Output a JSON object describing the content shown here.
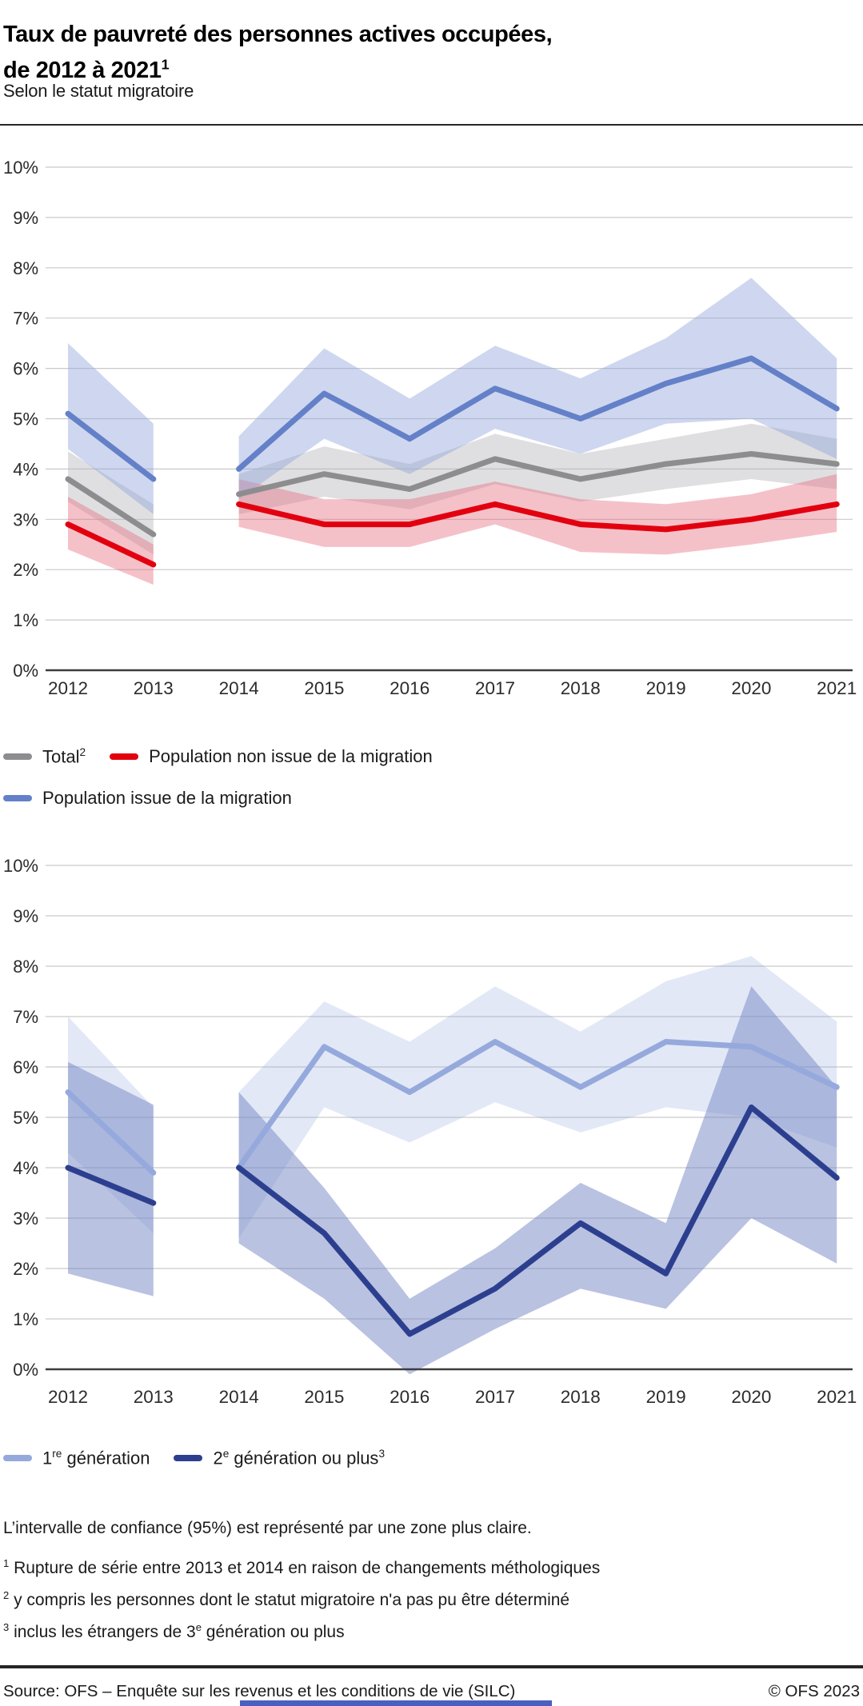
{
  "header": {
    "title_line1": "Taux de pauvreté des personnes actives occupées,",
    "title_line2_parts": [
      {
        "t": "de 2012 à 2021"
      },
      {
        "sup": "1"
      }
    ],
    "subtitle": "Selon le statut migratoire"
  },
  "confidence_note": "L’intervalle de confiance (95%) est représenté par une zone plus claire.",
  "footnotes": [
    [
      {
        "sup": "1"
      },
      {
        "t": " Rupture de série entre 2013 et 2014 en raison de changements méthologiques"
      }
    ],
    [
      {
        "sup": "2"
      },
      {
        "t": " y compris les personnes dont le statut migratoire n'a pas pu être déterminé"
      }
    ],
    [
      {
        "sup": "3"
      },
      {
        "t": " inclus les étrangers de 3"
      },
      {
        "sup": "e"
      },
      {
        "t": " génération ou plus"
      }
    ]
  ],
  "footer": {
    "source": "Source: OFS – Enquête sur les revenus et les conditions de vie (SILC)",
    "copyright": "© OFS 2023"
  },
  "colors": {
    "gridline": "#c9c9c9",
    "axis": "#3c3c3c",
    "tick_text": "#2b2b2b",
    "rule": "#262626",
    "bottom_bar": "#4a5fc1"
  },
  "chart_data": [
    {
      "type": "line",
      "title": "Taux de pauvreté selon le statut migratoire",
      "categories": [
        "2012",
        "2013",
        "2014",
        "2015",
        "2016",
        "2017",
        "2018",
        "2019",
        "2020",
        "2021"
      ],
      "break_after_index": 1,
      "ylim": [
        0,
        10
      ],
      "y_ticks": [
        "0%",
        "1%",
        "2%",
        "3%",
        "4%",
        "5%",
        "6%",
        "7%",
        "8%",
        "9%",
        "10%"
      ],
      "grid": true,
      "legend_position": "below",
      "confidence_level": "95%",
      "series": [
        {
          "key": "total",
          "name": "Total (2)",
          "name_parts": [
            {
              "t": "Total"
            },
            {
              "sup": "2"
            }
          ],
          "color": "#8d8d90",
          "band_color": "#b9b9bc",
          "band_opacity": 0.45,
          "values": [
            3.8,
            2.7,
            3.5,
            3.9,
            3.6,
            4.2,
            3.8,
            4.1,
            4.3,
            4.1
          ],
          "ci_low": [
            3.35,
            2.3,
            3.1,
            3.45,
            3.2,
            3.7,
            3.35,
            3.6,
            3.8,
            3.6
          ],
          "ci_high": [
            4.35,
            3.3,
            3.9,
            4.45,
            4.1,
            4.7,
            4.3,
            4.6,
            4.9,
            4.6
          ]
        },
        {
          "key": "non-issue-migration",
          "name": "Population non issue de la migration",
          "name_parts": [
            {
              "t": "Population non issue de la migration"
            }
          ],
          "color": "#e2000f",
          "band_color": "#e56377",
          "band_opacity": 0.4,
          "values": [
            2.9,
            2.1,
            3.3,
            2.9,
            2.9,
            3.3,
            2.9,
            2.8,
            3.0,
            3.3
          ],
          "ci_low": [
            2.4,
            1.7,
            2.85,
            2.45,
            2.45,
            2.9,
            2.35,
            2.3,
            2.5,
            2.75
          ],
          "ci_high": [
            3.45,
            2.5,
            3.8,
            3.4,
            3.4,
            3.75,
            3.4,
            3.3,
            3.5,
            3.9
          ]
        },
        {
          "key": "issue-migration",
          "name": "Population issue de la migration",
          "name_parts": [
            {
              "t": "Population issue de la migration"
            }
          ],
          "color": "#6480c8",
          "band_color": "#93a7db",
          "band_opacity": 0.45,
          "values": [
            5.1,
            3.8,
            4.0,
            5.5,
            4.6,
            5.6,
            5.0,
            5.7,
            6.2,
            5.2
          ],
          "ci_low": [
            4.4,
            3.1,
            3.4,
            4.6,
            3.9,
            4.8,
            4.3,
            4.9,
            5.0,
            4.2
          ],
          "ci_high": [
            6.5,
            4.9,
            4.65,
            6.4,
            5.4,
            6.45,
            5.8,
            6.6,
            7.8,
            6.2
          ]
        }
      ]
    },
    {
      "type": "line",
      "title": "Taux de pauvreté de la population issue de la migration selon la génération",
      "categories": [
        "2012",
        "2013",
        "2014",
        "2015",
        "2016",
        "2017",
        "2018",
        "2019",
        "2020",
        "2021"
      ],
      "break_after_index": 1,
      "ylim": [
        0,
        10
      ],
      "y_ticks": [
        "0%",
        "1%",
        "2%",
        "3%",
        "4%",
        "5%",
        "6%",
        "7%",
        "8%",
        "9%",
        "10%"
      ],
      "grid": true,
      "legend_position": "below",
      "confidence_level": "95%",
      "series": [
        {
          "key": "premiere-generation",
          "name": "1re génération",
          "name_parts": [
            {
              "t": "1"
            },
            {
              "sup": "re"
            },
            {
              "t": " génération"
            }
          ],
          "color": "#95a9dc",
          "band_color": "#95a9dc",
          "band_opacity": 0.27,
          "values": [
            5.5,
            3.9,
            4.0,
            6.4,
            5.5,
            6.5,
            5.6,
            6.5,
            6.4,
            5.6
          ],
          "ci_low": [
            4.3,
            2.7,
            2.6,
            5.2,
            4.5,
            5.3,
            4.7,
            5.2,
            5.0,
            4.4
          ],
          "ci_high": [
            7.0,
            5.2,
            5.5,
            7.3,
            6.5,
            7.6,
            6.7,
            7.7,
            8.2,
            6.9
          ]
        },
        {
          "key": "deuxieme-generation-ou-plus",
          "name": "2e génération ou plus (3)",
          "name_parts": [
            {
              "t": "2"
            },
            {
              "sup": "e"
            },
            {
              "t": " génération ou plus"
            },
            {
              "sup": "3"
            }
          ],
          "color": "#2c3f8f",
          "band_color": "#7385c4",
          "band_opacity": 0.5,
          "values": [
            4.0,
            3.3,
            4.0,
            2.7,
            0.7,
            1.6,
            2.9,
            1.9,
            5.2,
            3.8
          ],
          "ci_low": [
            1.9,
            1.45,
            2.5,
            1.4,
            -0.1,
            0.8,
            1.6,
            1.2,
            3.0,
            2.1
          ],
          "ci_high": [
            6.1,
            5.25,
            5.5,
            3.6,
            1.4,
            2.4,
            3.7,
            2.9,
            7.6,
            5.6
          ]
        }
      ]
    }
  ]
}
